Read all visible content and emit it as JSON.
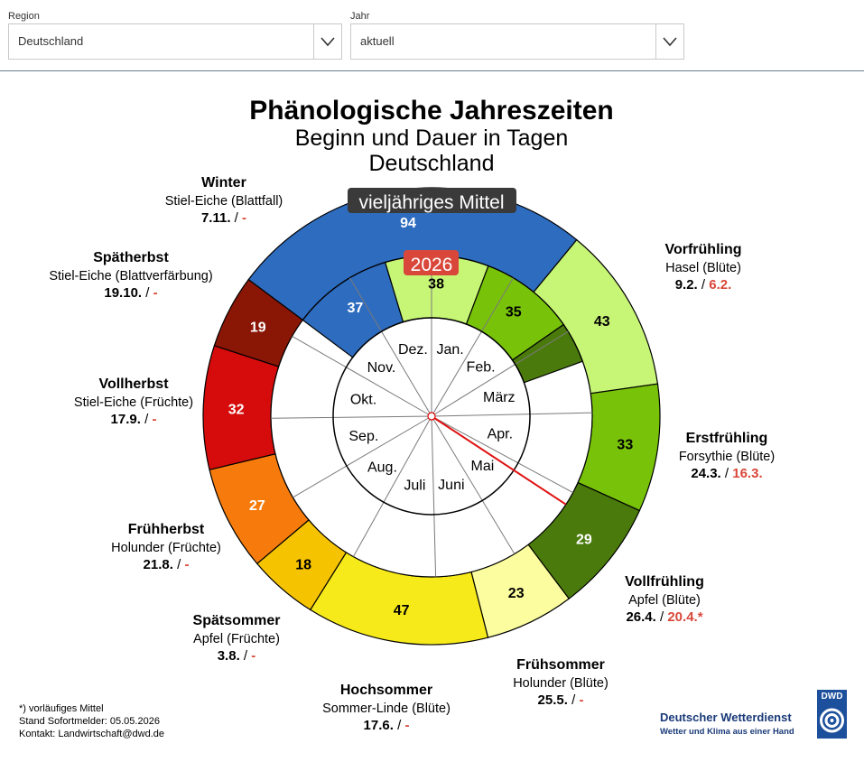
{
  "filters": {
    "region": {
      "label": "Region",
      "value": "Deutschland"
    },
    "year": {
      "label": "Jahr",
      "value": "aktuell"
    }
  },
  "chart_data": {
    "type": "pie",
    "title": "Phänologische Jahreszeiten",
    "subtitle": "Beginn und Dauer in Tagen",
    "region": "Deutschland",
    "outer_ring_label": "vieljähriges Mittel",
    "inner_ring_label": "2026",
    "months": [
      "Jan.",
      "Feb.",
      "März",
      "Apr.",
      "Mai",
      "Juni",
      "Juli",
      "Aug.",
      "Sep.",
      "Okt.",
      "Nov.",
      "Dez."
    ],
    "today_marker": {
      "date": "05.05.2026",
      "day_of_year": 125
    },
    "seasons": [
      {
        "name": "Winter",
        "indicator": "Stiel-Eiche (Blattfall)",
        "start_mean": "7.11.",
        "start_current": "-",
        "mean_days": 94,
        "current_days": 37,
        "color": "#2e6cbf"
      },
      {
        "name": "Vorfrühling",
        "indicator": "Hasel (Blüte)",
        "start_mean": "9.2.",
        "start_current": "6.2.",
        "mean_days": 43,
        "current_days": 38,
        "color": "#c7f576"
      },
      {
        "name": "Erstfrühling",
        "indicator": "Forsythie (Blüte)",
        "start_mean": "24.3.",
        "start_current": "16.3.",
        "mean_days": 33,
        "current_days": 35,
        "color": "#78c20a"
      },
      {
        "name": "Vollfrühling",
        "indicator": "Apfel (Blüte)",
        "start_mean": "26.4.",
        "start_current": "20.4.*",
        "mean_days": 29,
        "current_days": 15,
        "color": "#4a7a0c"
      },
      {
        "name": "Frühsommer",
        "indicator": "Holunder (Blüte)",
        "start_mean": "25.5.",
        "start_current": "-",
        "mean_days": 23,
        "current_days": null,
        "color": "#fbfd9e"
      },
      {
        "name": "Hochsommer",
        "indicator": "Sommer-Linde (Blüte)",
        "start_mean": "17.6.",
        "start_current": "-",
        "mean_days": 47,
        "current_days": null,
        "color": "#f7ea1a"
      },
      {
        "name": "Spätsommer",
        "indicator": "Apfel (Früchte)",
        "start_mean": "3.8.",
        "start_current": "-",
        "mean_days": 18,
        "current_days": null,
        "color": "#f5c300"
      },
      {
        "name": "Frühherbst",
        "indicator": "Holunder (Früchte)",
        "start_mean": "21.8.",
        "start_current": "-",
        "mean_days": 27,
        "current_days": null,
        "color": "#f77b0c"
      },
      {
        "name": "Vollherbst",
        "indicator": "Stiel-Eiche (Früchte)",
        "start_mean": "17.9.",
        "start_current": "-",
        "mean_days": 32,
        "current_days": null,
        "color": "#d60b0b"
      },
      {
        "name": "Spätherbst",
        "indicator": "Stiel-Eiche (Blattverfärbung)",
        "start_mean": "19.10.",
        "start_current": "-",
        "mean_days": 19,
        "current_days": null,
        "color": "#8a1606"
      }
    ]
  },
  "footnotes": {
    "preliminary": "*) vorläufiges Mittel",
    "status": "Stand Sofortmelder: 05.05.2026",
    "contact": "Kontakt: Landwirtschaft@dwd.de"
  },
  "logo": {
    "name": "Deutscher Wetterdienst",
    "slogan": "Wetter und Klima aus einer Hand",
    "abbr": "DWD"
  },
  "colors": {
    "accent_red": "#d9473a",
    "dark_label_bg": "#3a3a3a"
  }
}
